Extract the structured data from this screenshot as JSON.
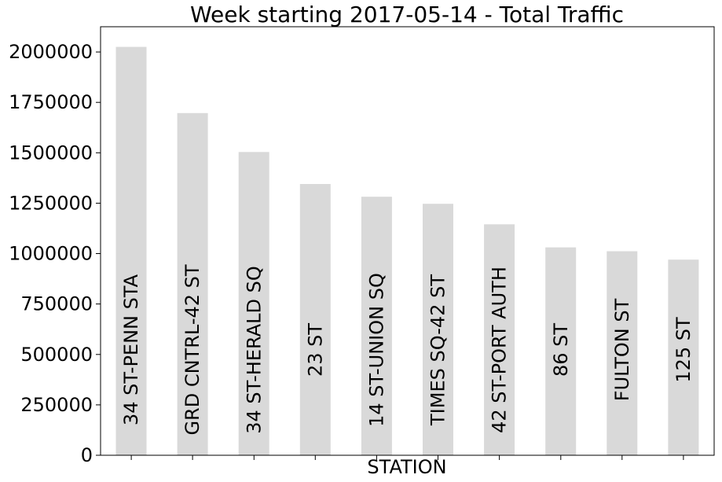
{
  "chart_data": {
    "type": "bar",
    "title": "Week starting 2017-05-14 - Total Traffic",
    "xlabel": "STATION",
    "ylabel": "",
    "categories": [
      "34 ST-PENN STA",
      "GRD CNTRL-42 ST",
      "34 ST-HERALD SQ",
      "23 ST",
      "14 ST-UNION SQ",
      "TIMES SQ-42 ST",
      "42 ST-PORT AUTH",
      "86 ST",
      "FULTON ST",
      "125 ST"
    ],
    "values": [
      2025000,
      1697000,
      1504000,
      1345000,
      1282000,
      1247000,
      1145000,
      1031000,
      1012000,
      970000
    ],
    "ylim": [
      0,
      2125000
    ],
    "yticks": [
      0,
      250000,
      500000,
      750000,
      1000000,
      1250000,
      1500000,
      1750000,
      2000000
    ],
    "ytick_labels": [
      "0",
      "250000",
      "500000",
      "750000",
      "1000000",
      "1250000",
      "1500000",
      "1750000",
      "2000000"
    ],
    "bar_color": "#d9d9d9",
    "grid": false,
    "legend": "none"
  }
}
